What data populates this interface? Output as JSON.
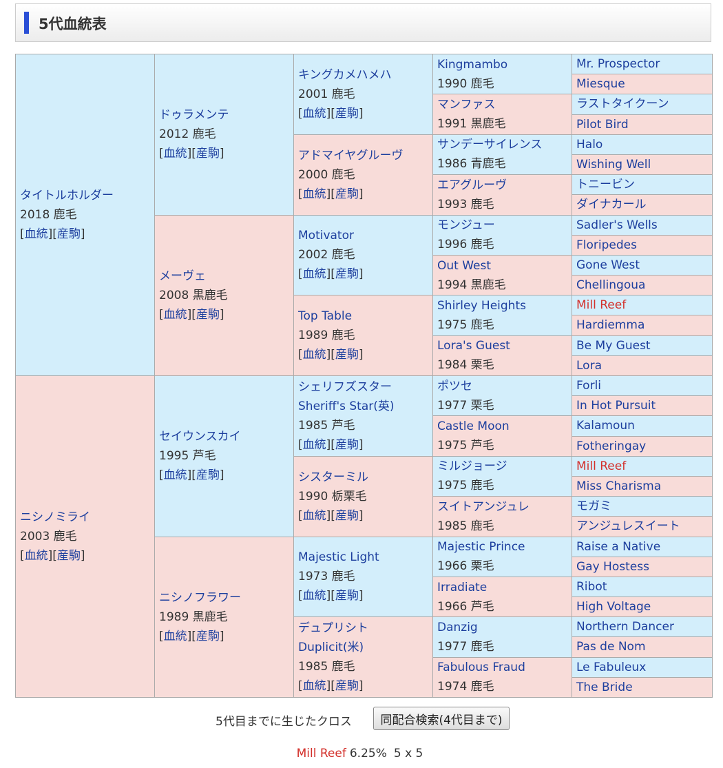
{
  "header": {
    "title": "5代血統表"
  },
  "link_labels": {
    "open": "[",
    "pedigree": "血統",
    "sep": "][",
    "offspring": "産駒",
    "close": "]"
  },
  "pedigree": {
    "generations": [
      [
        {
          "name": "タイトルホルダー",
          "info": "2018 鹿毛"
        },
        {
          "name": "ニシノミライ",
          "info": "2003 鹿毛"
        }
      ],
      [
        {
          "name": "ドゥラメンテ",
          "info": "2012 鹿毛"
        },
        {
          "name": "メーヴェ",
          "info": "2008 黒鹿毛"
        },
        {
          "name": "セイウンスカイ",
          "info": "1995 芦毛"
        },
        {
          "name": "ニシノフラワー",
          "info": "1989 黒鹿毛"
        }
      ],
      [
        {
          "name": "キングカメハメハ",
          "info": "2001 鹿毛"
        },
        {
          "name": "アドマイヤグルーヴ",
          "info": "2000 鹿毛"
        },
        {
          "name": "Motivator",
          "info": "2002 鹿毛"
        },
        {
          "name": "Top Table",
          "info": "1989 鹿毛"
        },
        {
          "name": "シェリフズスター",
          "alt_name": "Sheriff's Star(英)",
          "info": "1985 芦毛"
        },
        {
          "name": "シスターミル",
          "info": "1990 栃栗毛"
        },
        {
          "name": "Majestic Light",
          "info": "1973 鹿毛"
        },
        {
          "name": "デュプリシト",
          "alt_name": "Duplicit(米)",
          "info": "1985 鹿毛"
        }
      ],
      [
        {
          "name": "Kingmambo",
          "info": "1990 鹿毛"
        },
        {
          "name": "マンファス",
          "info": "1991 黒鹿毛"
        },
        {
          "name": "サンデーサイレンス",
          "info": "1986 青鹿毛"
        },
        {
          "name": "エアグルーヴ",
          "info": "1993 鹿毛"
        },
        {
          "name": "モンジュー",
          "info": "1996 鹿毛"
        },
        {
          "name": "Out West",
          "info": "1994 黒鹿毛"
        },
        {
          "name": "Shirley Heights",
          "info": "1975 鹿毛"
        },
        {
          "name": "Lora's Guest",
          "info": "1984 栗毛"
        },
        {
          "name": "ポツセ",
          "info": "1977 栗毛"
        },
        {
          "name": "Castle Moon",
          "info": "1975 芦毛"
        },
        {
          "name": "ミルジョージ",
          "info": "1975 鹿毛"
        },
        {
          "name": "スイトアンジュレ",
          "info": "1985 鹿毛"
        },
        {
          "name": "Majestic Prince",
          "info": "1966 栗毛"
        },
        {
          "name": "Irradiate",
          "info": "1966 芦毛"
        },
        {
          "name": "Danzig",
          "info": "1977 鹿毛"
        },
        {
          "name": "Fabulous Fraud",
          "info": "1974 鹿毛"
        }
      ],
      [
        {
          "name": "Mr. Prospector"
        },
        {
          "name": "Miesque"
        },
        {
          "name": "ラストタイクーン"
        },
        {
          "name": "Pilot Bird"
        },
        {
          "name": "Halo"
        },
        {
          "name": "Wishing Well"
        },
        {
          "name": "トニービン"
        },
        {
          "name": "ダイナカール"
        },
        {
          "name": "Sadler's Wells"
        },
        {
          "name": "Floripedes"
        },
        {
          "name": "Gone West"
        },
        {
          "name": "Chellingoua"
        },
        {
          "name": "Mill Reef",
          "highlight": true
        },
        {
          "name": "Hardiemma"
        },
        {
          "name": "Be My Guest"
        },
        {
          "name": "Lora"
        },
        {
          "name": "Forli"
        },
        {
          "name": "In Hot Pursuit"
        },
        {
          "name": "Kalamoun"
        },
        {
          "name": "Fotheringay"
        },
        {
          "name": "Mill Reef",
          "highlight": true
        },
        {
          "name": "Miss Charisma"
        },
        {
          "name": "モガミ"
        },
        {
          "name": "アンジュレスイート"
        },
        {
          "name": "Raise a Native"
        },
        {
          "name": "Gay Hostess"
        },
        {
          "name": "Ribot"
        },
        {
          "name": "High Voltage"
        },
        {
          "name": "Northern Dancer"
        },
        {
          "name": "Pas de Nom"
        },
        {
          "name": "Le Fabuleux"
        },
        {
          "name": "The Bride"
        }
      ]
    ]
  },
  "cross": {
    "label": "5代目までに生じたクロス",
    "button": "同配合検索(4代目まで)",
    "items": [
      {
        "name": "Mill Reef",
        "percent": "6.25%",
        "pattern": "5 x 5"
      }
    ]
  }
}
